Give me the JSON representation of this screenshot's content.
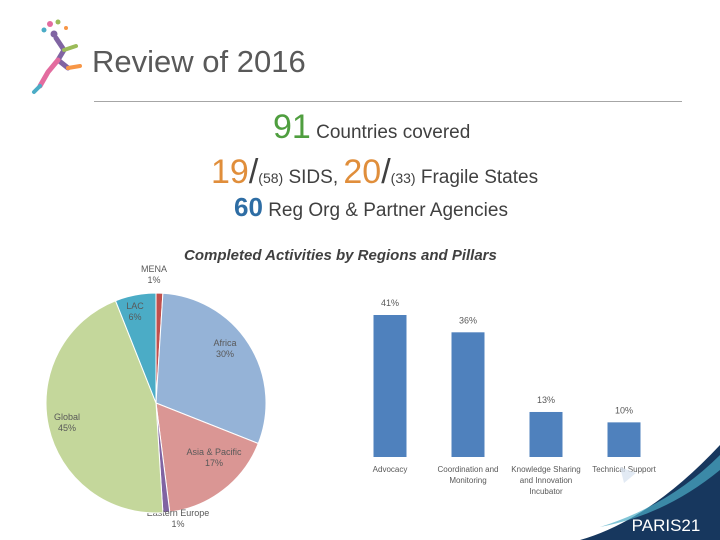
{
  "title": "Review of 2016",
  "headline": {
    "countries": "91",
    "countries_label": "Countries covered",
    "sids": "19",
    "sids_total": "(58)",
    "sids_label": "SIDS,",
    "fragile": "20",
    "fragile_total": "(33)",
    "fragile_label": "Fragile States",
    "orgs": "60",
    "orgs_label": "Reg Org & Partner Agencies"
  },
  "brand": "PARIS21",
  "chart_data": [
    {
      "type": "pie",
      "title": "Completed Activities by Regions and Pillars",
      "slices": [
        {
          "label": "MENA",
          "value": 1,
          "text": "1%",
          "color": "#c0504d"
        },
        {
          "label": "Africa",
          "value": 30,
          "text": "30%",
          "color": "#95b3d7"
        },
        {
          "label": "Asia & Pacific",
          "value": 17,
          "text": "17%",
          "color": "#da9694"
        },
        {
          "label": "Eastern Europe",
          "value": 1,
          "text": "1%",
          "color": "#8064a2"
        },
        {
          "label": "Global",
          "value": 45,
          "text": "45%",
          "color": "#c4d79b"
        },
        {
          "label": "LAC",
          "value": 6,
          "text": "6%",
          "color": "#4bacc6"
        }
      ]
    },
    {
      "type": "bar",
      "categories": [
        "Advocacy",
        "Coordination and Monitoring",
        "Knowledge Sharing and Innovation Incubator",
        "Technical Support"
      ],
      "category_lines": [
        [
          "Advocacy"
        ],
        [
          "Coordination and",
          "Monitoring"
        ],
        [
          "Knowledge Sharing",
          "and Innovation",
          "Incubator"
        ],
        [
          "Technical Support"
        ]
      ],
      "values": [
        41,
        36,
        13,
        10
      ],
      "value_labels": [
        "41%",
        "36%",
        "13%",
        "10%"
      ],
      "color": "#4f81bd",
      "ylim": [
        0,
        41
      ]
    }
  ]
}
